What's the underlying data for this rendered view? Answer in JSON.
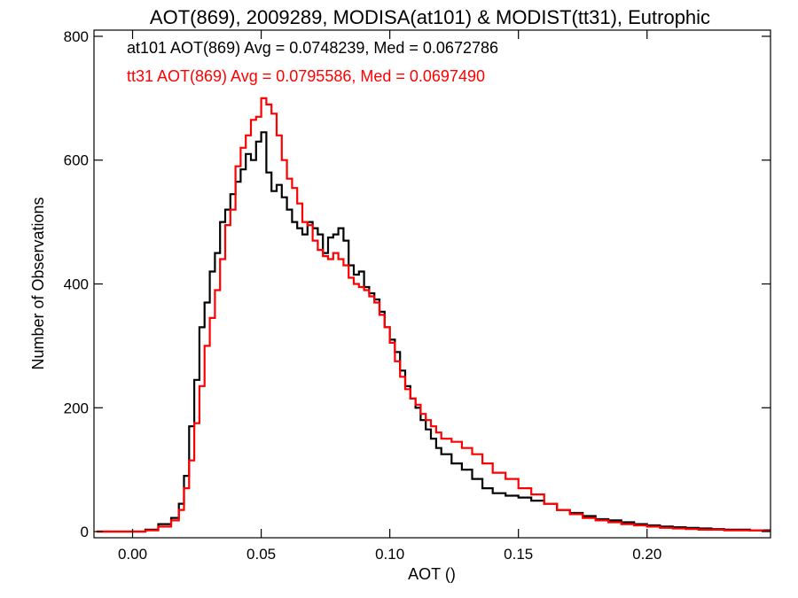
{
  "chart_data": {
    "type": "line",
    "title": "AOT(869), 2009289, MODISA(at101) & MODIST(tt31), Eutrophic",
    "xlabel": "AOT ()",
    "ylabel": "Number of Observations",
    "xlim": [
      -0.015,
      0.248
    ],
    "ylim": [
      -10,
      810
    ],
    "xticks": [
      0.0,
      0.05,
      0.1,
      0.15,
      0.2
    ],
    "xtick_labels": [
      "0.00",
      "0.05",
      "0.10",
      "0.15",
      "0.20"
    ],
    "yticks": [
      0,
      200,
      400,
      600,
      800
    ],
    "ytick_labels": [
      "0",
      "200",
      "400",
      "600",
      "800"
    ],
    "grid": false,
    "legend_position": "top-left",
    "series": [
      {
        "name": "at101 AOT(869) Avg = 0.0748239, Med = 0.0672786",
        "color": "#000000",
        "x": [
          -0.014,
          0.0,
          0.005,
          0.01,
          0.015,
          0.018,
          0.02,
          0.022,
          0.024,
          0.026,
          0.028,
          0.03,
          0.032,
          0.034,
          0.036,
          0.038,
          0.04,
          0.042,
          0.044,
          0.046,
          0.048,
          0.05,
          0.052,
          0.054,
          0.056,
          0.058,
          0.06,
          0.062,
          0.064,
          0.066,
          0.068,
          0.07,
          0.072,
          0.074,
          0.076,
          0.078,
          0.08,
          0.082,
          0.084,
          0.086,
          0.088,
          0.09,
          0.092,
          0.094,
          0.096,
          0.098,
          0.1,
          0.102,
          0.104,
          0.106,
          0.108,
          0.11,
          0.112,
          0.114,
          0.116,
          0.118,
          0.12,
          0.124,
          0.128,
          0.132,
          0.136,
          0.14,
          0.145,
          0.15,
          0.155,
          0.16,
          0.165,
          0.17,
          0.175,
          0.18,
          0.185,
          0.19,
          0.195,
          0.2,
          0.205,
          0.21,
          0.215,
          0.22,
          0.225,
          0.23,
          0.235,
          0.24,
          0.245
        ],
        "values": [
          0,
          0,
          3,
          12,
          22,
          45,
          90,
          170,
          245,
          330,
          370,
          420,
          450,
          500,
          520,
          545,
          565,
          585,
          610,
          600,
          630,
          645,
          580,
          550,
          560,
          540,
          520,
          500,
          490,
          480,
          500,
          490,
          480,
          450,
          475,
          480,
          490,
          470,
          430,
          415,
          420,
          395,
          385,
          375,
          355,
          330,
          310,
          290,
          260,
          235,
          215,
          200,
          180,
          165,
          150,
          135,
          125,
          110,
          100,
          85,
          70,
          62,
          58,
          55,
          50,
          45,
          35,
          30,
          25,
          20,
          18,
          15,
          12,
          10,
          8,
          7,
          6,
          5,
          4,
          3,
          3,
          2,
          2
        ]
      },
      {
        "name": "tt31 AOT(869) Avg = 0.0795586, Med = 0.0697490",
        "color": "#ff0000",
        "x": [
          -0.014,
          0.0,
          0.005,
          0.01,
          0.015,
          0.018,
          0.02,
          0.022,
          0.024,
          0.026,
          0.028,
          0.03,
          0.032,
          0.034,
          0.036,
          0.038,
          0.04,
          0.042,
          0.044,
          0.046,
          0.048,
          0.05,
          0.052,
          0.054,
          0.056,
          0.058,
          0.06,
          0.062,
          0.064,
          0.066,
          0.068,
          0.07,
          0.072,
          0.074,
          0.076,
          0.078,
          0.08,
          0.082,
          0.084,
          0.086,
          0.088,
          0.09,
          0.092,
          0.094,
          0.096,
          0.098,
          0.1,
          0.102,
          0.104,
          0.106,
          0.108,
          0.11,
          0.112,
          0.114,
          0.116,
          0.118,
          0.12,
          0.124,
          0.128,
          0.132,
          0.136,
          0.14,
          0.145,
          0.15,
          0.155,
          0.16,
          0.165,
          0.17,
          0.175,
          0.18,
          0.185,
          0.19,
          0.195,
          0.2,
          0.205,
          0.21,
          0.215,
          0.22,
          0.225,
          0.23,
          0.235,
          0.24,
          0.245
        ],
        "values": [
          0,
          0,
          2,
          8,
          18,
          35,
          70,
          115,
          175,
          235,
          300,
          345,
          390,
          440,
          495,
          520,
          590,
          620,
          640,
          665,
          670,
          700,
          690,
          675,
          640,
          600,
          570,
          555,
          530,
          500,
          495,
          470,
          455,
          445,
          440,
          450,
          440,
          430,
          410,
          400,
          395,
          390,
          380,
          370,
          350,
          330,
          305,
          275,
          250,
          230,
          215,
          205,
          190,
          180,
          170,
          160,
          150,
          145,
          135,
          125,
          110,
          95,
          85,
          70,
          60,
          45,
          35,
          28,
          22,
          18,
          15,
          12,
          10,
          8,
          6,
          5,
          4,
          3,
          3,
          2,
          2,
          2,
          1
        ]
      }
    ]
  }
}
